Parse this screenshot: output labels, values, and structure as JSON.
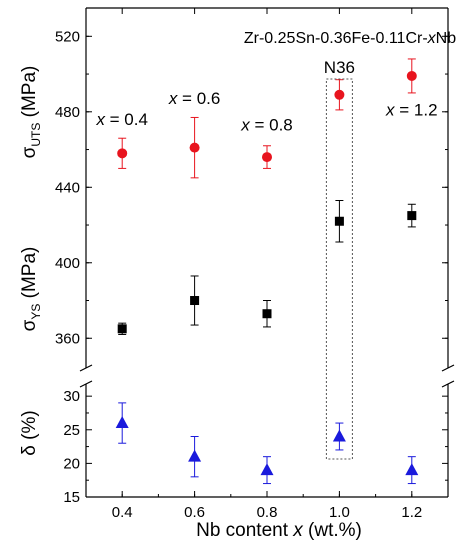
{
  "chart_data": {
    "type": "scatter",
    "composition": {
      "prefix": "Zr-0.25Sn-0.36Fe-0.11Cr-",
      "variable": "x",
      "suffix": "Nb"
    },
    "xaxis": {
      "label_prefix": "Nb content ",
      "label_var": "x",
      "label_suffix": " (wt.%)",
      "range": [
        0.3,
        1.3
      ],
      "ticks": [
        0.4,
        0.6,
        0.8,
        1.0,
        1.2
      ],
      "tick_labels": [
        "0.4",
        "0.6",
        "0.8",
        "1.0",
        "1.2"
      ]
    },
    "panels": [
      {
        "id": "strength",
        "ylim": [
          340,
          535
        ],
        "yticks": [
          360,
          400,
          440,
          480,
          520
        ],
        "labels": [
          {
            "symbol": "σ",
            "sub": "UTS",
            "suffix": " (MPa)"
          },
          {
            "symbol": "σ",
            "sub": "YS",
            "suffix": " (MPa)"
          }
        ],
        "series": [
          {
            "key": "uts",
            "marker": "circle",
            "color": "#e8141e",
            "x": [
              0.4,
              0.6,
              0.8,
              1.0,
              1.2
            ],
            "y": [
              458,
              461,
              456,
              489,
              499
            ],
            "err": [
              8,
              16,
              6,
              8,
              9
            ]
          },
          {
            "key": "ys",
            "marker": "square",
            "color": "#000000",
            "x": [
              0.4,
              0.6,
              0.8,
              1.0,
              1.2
            ],
            "y": [
              365,
              380,
              373,
              422,
              425
            ],
            "err": [
              3,
              13,
              7,
              11,
              6
            ]
          }
        ]
      },
      {
        "id": "elongation",
        "ylim": [
          15,
          33
        ],
        "yticks": [
          15,
          20,
          25,
          30
        ],
        "labels": [
          {
            "symbol": "δ",
            "sub": "",
            "suffix": " (%)"
          }
        ],
        "series": [
          {
            "key": "delta",
            "marker": "triangle",
            "color": "#1a1adc",
            "x": [
              0.4,
              0.6,
              0.8,
              1.0,
              1.2
            ],
            "y": [
              26,
              21,
              19,
              24,
              19
            ],
            "err": [
              3,
              3,
              2,
              2,
              2
            ]
          }
        ]
      }
    ],
    "annotations": [
      {
        "var": "x",
        "text": " = 0.4",
        "x": 0.4,
        "y": 473
      },
      {
        "var": "x",
        "text": " = 0.6",
        "x": 0.6,
        "y": 484
      },
      {
        "var": "x",
        "text": " = 0.8",
        "x": 0.8,
        "y": 470
      },
      {
        "var": "x",
        "text": " = 1.2",
        "x": 1.2,
        "y": 478
      }
    ],
    "highlight": {
      "label": "N36",
      "x": 1.0
    }
  }
}
